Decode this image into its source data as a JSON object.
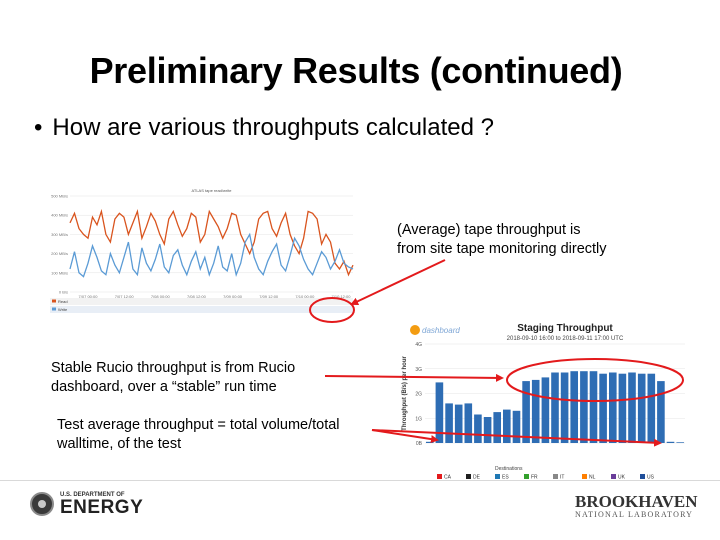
{
  "slide": {
    "title": "Preliminary Results (continued)",
    "bullet": "How are various throughputs calculated ?",
    "bullet_marker": "•",
    "notes": [
      "(Average) tape throughput is from site tape monitoring directly",
      "Stable Rucio throughput is from Rucio dashboard, over a “stable” run time",
      "Test average throughput = total volume/total walltime, of the test"
    ],
    "arrow_color": "#e31a1c"
  },
  "footer": {
    "doe_small": "U.S. DEPARTMENT OF",
    "doe_big": "ENERGY",
    "bnl_big": "BROOKHAVEN",
    "bnl_small": "NATIONAL LABORATORY"
  },
  "chart_data": [
    {
      "type": "line",
      "title": "ATLAS tape read/write",
      "y_tick_labels": [
        "0 B/s",
        "100 MB/s",
        "200 MB/s",
        "300 MB/s",
        "400 MB/s",
        "500 MB/s"
      ],
      "ylim": [
        0,
        500
      ],
      "x_tick_labels": [
        "7/07 00:00",
        "7/07 12:00",
        "7/08 00:00",
        "7/08 12:00",
        "7/09 00:00",
        "7/09 12:00",
        "7/10 00:00",
        "7/10 12:00"
      ],
      "grid": true,
      "legend_position": "bottom",
      "legend_columns": [
        "",
        "",
        "",
        "",
        ""
      ],
      "series": [
        {
          "name": "Read",
          "color": "#d9541e",
          "values": [
            360,
            410,
            330,
            300,
            280,
            390,
            350,
            420,
            300,
            260,
            380,
            410,
            390,
            300,
            360,
            420,
            280,
            340,
            410,
            370,
            300,
            250,
            380,
            420,
            350,
            290,
            330,
            410,
            390,
            260,
            300,
            420,
            380,
            340,
            280,
            330,
            410,
            400,
            300,
            250,
            200,
            260,
            380,
            410,
            420,
            330,
            290,
            360,
            410,
            300,
            240,
            200,
            280,
            420,
            410,
            380,
            250,
            300,
            260,
            150,
            120,
            160,
            90,
            140
          ]
        },
        {
          "name": "Write",
          "color": "#5b9bd5",
          "values": [
            120,
            210,
            100,
            80,
            150,
            240,
            180,
            110,
            90,
            200,
            140,
            100,
            180,
            260,
            120,
            90,
            230,
            150,
            110,
            170,
            250,
            130,
            100,
            190,
            220,
            140,
            90,
            160,
            210,
            120,
            180,
            90,
            150,
            240,
            130,
            110,
            200,
            90,
            150,
            260,
            300,
            180,
            120,
            90,
            160,
            210,
            250,
            140,
            110,
            190,
            280,
            240,
            170,
            120,
            90,
            150,
            210,
            180,
            120,
            160,
            220,
            150,
            130,
            120
          ]
        }
      ]
    },
    {
      "type": "bar",
      "title": "Staging Throughput",
      "subtitle": "2018-09-10 16:00 to 2018-09-11 17:00 UTC",
      "logo_text": "dashboard",
      "ylabel": "Throughput (B/s) per hour",
      "xlabel": "Destinations",
      "y_tick_labels": [
        "0B",
        "1G",
        "2G",
        "3G",
        "4G"
      ],
      "ylim": [
        0,
        4
      ],
      "categories": [
        "",
        "",
        "",
        "",
        "",
        "",
        "",
        "",
        "",
        "",
        "",
        "",
        "",
        "",
        "",
        "",
        "",
        "",
        "",
        "",
        "",
        "",
        "",
        "",
        "",
        "",
        ""
      ],
      "values": [
        0.05,
        2.45,
        1.6,
        1.55,
        1.6,
        1.15,
        1.05,
        1.25,
        1.35,
        1.3,
        2.5,
        2.55,
        2.65,
        2.85,
        2.85,
        2.9,
        2.9,
        2.9,
        2.8,
        2.85,
        2.8,
        2.85,
        2.8,
        2.8,
        2.5,
        0.05,
        0.03
      ],
      "bar_color": "#2e6db4",
      "legend_entries": [
        "CA",
        "DE",
        "ES",
        "FR",
        "IT",
        "NL",
        "UK",
        "US"
      ],
      "legend_colors": [
        "#e31a1c",
        "#1f1f1f",
        "#1f78b4",
        "#33a02c",
        "#888888",
        "#ff7f00",
        "#6a3d9a",
        "#1f4e9a"
      ],
      "legend_position": "bottom",
      "grid": true
    }
  ]
}
